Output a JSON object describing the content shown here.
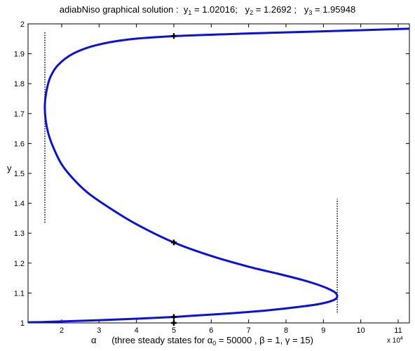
{
  "chart_data": {
    "type": "line",
    "title": {
      "text": "adiabNiso graphical solution  :",
      "solutions": [
        {
          "label": "y",
          "sub": "1",
          "value": "= 1.02016;"
        },
        {
          "label": "y",
          "sub": "2",
          "value": "= 1.2692 ;"
        },
        {
          "label": "y",
          "sub": "3",
          "value": "= 1.95948"
        }
      ]
    },
    "ylabel": "y",
    "xlabel": {
      "symbol": "α",
      "text_before": "(three steady states for α",
      "sub": "0",
      "text_after": " = 50000 , β = 1, γ = 15)"
    },
    "x_exponent": {
      "base": "x 10",
      "power": "4"
    },
    "xlim": [
      1.1,
      11.3
    ],
    "ylim": [
      1.0,
      2.0
    ],
    "x_ticks": [
      "2",
      "3",
      "4",
      "5",
      "6",
      "7",
      "8",
      "9",
      "10",
      "11"
    ],
    "y_ticks": [
      "1",
      "1.1",
      "1.2",
      "1.3",
      "1.4",
      "1.5",
      "1.6",
      "1.7",
      "1.8",
      "1.9",
      "2"
    ],
    "x_scale": 10000,
    "series": [
      {
        "color": "#0a12d8",
        "x": [
          11.3,
          9.0,
          7.0,
          5.0,
          3.8,
          2.9,
          2.3,
          1.9,
          1.7,
          1.6,
          1.55,
          1.57,
          1.65,
          1.8,
          2.0,
          2.3,
          2.7,
          3.3,
          4.0,
          5.0,
          6.0,
          7.0,
          7.8,
          8.4,
          8.8,
          9.1,
          9.3,
          9.37,
          9.3,
          9.0,
          8.5,
          7.5,
          6.5,
          5.5,
          5.0,
          4.0,
          3.0,
          2.0,
          1.5,
          1.1
        ],
        "y": [
          1.984,
          1.975,
          1.968,
          1.959,
          1.948,
          1.928,
          1.9,
          1.862,
          1.823,
          1.78,
          1.73,
          1.68,
          1.63,
          1.58,
          1.53,
          1.483,
          1.435,
          1.383,
          1.33,
          1.269,
          1.224,
          1.188,
          1.164,
          1.145,
          1.13,
          1.116,
          1.103,
          1.09,
          1.078,
          1.066,
          1.056,
          1.042,
          1.032,
          1.024,
          1.02,
          1.014,
          1.009,
          1.005,
          1.003,
          1.002
        ]
      }
    ],
    "solution_markers": [
      {
        "x": 5,
        "y": 1.02016
      },
      {
        "x": 5,
        "y": 1.2692
      },
      {
        "x": 5,
        "y": 1.95948
      },
      {
        "x": 5,
        "y": 1.0
      }
    ],
    "bounds": [
      {
        "x": 1.55,
        "y_range": [
          1.335,
          1.975
        ]
      },
      {
        "x": 9.37,
        "y_range": [
          1.035,
          1.415
        ]
      }
    ],
    "grid": false,
    "legend": "none"
  }
}
